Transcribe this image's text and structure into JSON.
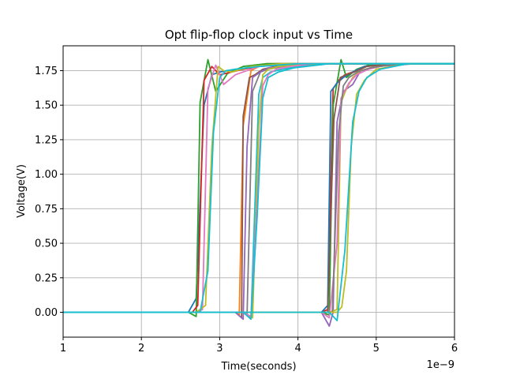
{
  "chart_data": {
    "type": "line",
    "title": "Opt flip-flop clock input vs Time",
    "xlabel": "Time(seconds)",
    "ylabel": "Voltage(V)",
    "x_offset_label": "1e−9",
    "x_scale": 1e-09,
    "xlim": [
      1,
      6
    ],
    "ylim": [
      -0.18,
      1.93
    ],
    "x_ticks": [
      1,
      2,
      3,
      4,
      5,
      6
    ],
    "x_tick_labels": [
      "1",
      "2",
      "3",
      "4",
      "5",
      "6"
    ],
    "y_ticks": [
      0,
      0.25,
      0.5,
      0.75,
      1.0,
      1.25,
      1.5,
      1.75
    ],
    "y_tick_labels": [
      "0.00",
      "0.25",
      "0.50",
      "0.75",
      "1.00",
      "1.25",
      "1.50",
      "1.75"
    ],
    "grid": true,
    "series": [
      {
        "color": "#1f77b4",
        "x": [
          1.0,
          2.6,
          2.7,
          2.8,
          2.9,
          3.0,
          3.2,
          3.3,
          3.4,
          3.5,
          3.6,
          3.7,
          4.3,
          4.4,
          4.5,
          4.6,
          4.7,
          4.8,
          5.0,
          6.0
        ],
        "y": [
          0,
          0,
          0.1,
          1.5,
          1.72,
          1.74,
          1.76,
          1.76,
          1.78,
          1.78,
          1.79,
          1.8,
          1.8,
          1.8,
          1.8,
          1.8,
          1.8,
          1.8,
          1.8,
          1.8
        ]
      },
      {
        "color": "#ff7f0e",
        "x": [
          1.0,
          3.2,
          3.25,
          3.3,
          3.4,
          3.5,
          3.6,
          3.8,
          4.0,
          4.5,
          6.0
        ],
        "y": [
          0,
          0,
          -0.02,
          1.35,
          1.75,
          1.78,
          1.8,
          1.8,
          1.8,
          1.8,
          1.8
        ]
      },
      {
        "color": "#2ca02c",
        "x": [
          1.0,
          2.6,
          2.7,
          2.75,
          2.85,
          2.95,
          3.1,
          3.3,
          3.6,
          4.0,
          6.0
        ],
        "y": [
          0,
          0,
          -0.03,
          1.52,
          1.83,
          1.6,
          1.73,
          1.78,
          1.8,
          1.8,
          1.8
        ]
      },
      {
        "color": "#d62728",
        "x": [
          1.0,
          2.65,
          2.72,
          2.8,
          2.9,
          3.0,
          3.3,
          3.6,
          4.0,
          6.0
        ],
        "y": [
          0,
          0,
          0.05,
          1.68,
          1.78,
          1.72,
          1.76,
          1.79,
          1.8,
          1.8
        ]
      },
      {
        "color": "#9467bd",
        "x": [
          1.0,
          4.3,
          4.4,
          4.45,
          4.5,
          4.58,
          4.7,
          4.8,
          5.0,
          5.5,
          6.0
        ],
        "y": [
          0,
          0,
          -0.1,
          0.0,
          1.38,
          1.6,
          1.65,
          1.75,
          1.78,
          1.8,
          1.8
        ]
      },
      {
        "color": "#8c564b",
        "x": [
          1.0,
          3.2,
          3.28,
          3.3,
          3.38,
          3.45,
          3.55,
          3.7,
          3.9,
          4.2,
          6.0
        ],
        "y": [
          0,
          0,
          -0.04,
          1.42,
          1.7,
          1.72,
          1.76,
          1.78,
          1.8,
          1.8,
          1.8
        ]
      },
      {
        "color": "#e377c2",
        "x": [
          1.0,
          2.7,
          2.78,
          2.85,
          2.95,
          3.05,
          3.2,
          3.5,
          4.0,
          6.0
        ],
        "y": [
          0,
          0,
          0.02,
          1.62,
          1.79,
          1.65,
          1.72,
          1.78,
          1.8,
          1.8
        ]
      },
      {
        "color": "#7f7f7f",
        "x": [
          1.0,
          3.3,
          3.35,
          3.42,
          3.52,
          3.62,
          3.8,
          4.0,
          4.3,
          6.0
        ],
        "y": [
          0,
          0,
          -0.02,
          1.6,
          1.74,
          1.76,
          1.78,
          1.79,
          1.8,
          1.8
        ]
      },
      {
        "color": "#bcbd22",
        "x": [
          1.0,
          4.4,
          4.5,
          4.55,
          4.62,
          4.7,
          4.8,
          5.0,
          5.3,
          6.0
        ],
        "y": [
          0,
          0,
          0.02,
          1.52,
          1.62,
          1.7,
          1.75,
          1.78,
          1.8,
          1.8
        ]
      },
      {
        "color": "#17becf",
        "x": [
          1.0,
          3.3,
          3.4,
          3.5,
          3.55,
          3.65,
          3.8,
          4.0,
          4.3,
          6.0
        ],
        "y": [
          0,
          0,
          -0.04,
          1.58,
          1.7,
          1.74,
          1.76,
          1.78,
          1.8,
          1.8
        ]
      },
      {
        "color": "#d62728",
        "x": [
          1.0,
          4.3,
          4.38,
          4.45,
          4.52,
          4.6,
          4.7,
          4.85,
          5.1,
          6.0
        ],
        "y": [
          0,
          0,
          0.02,
          1.62,
          1.68,
          1.72,
          1.74,
          1.78,
          1.8,
          1.8
        ]
      },
      {
        "color": "#2ca02c",
        "x": [
          1.0,
          4.3,
          4.4,
          4.45,
          4.55,
          4.62,
          4.75,
          4.9,
          5.2,
          6.0
        ],
        "y": [
          0,
          0,
          -0.02,
          1.5,
          1.83,
          1.7,
          1.76,
          1.79,
          1.8,
          1.8
        ]
      },
      {
        "color": "#1f77b4",
        "x": [
          1.0,
          4.3,
          4.38,
          4.42,
          4.5,
          4.58,
          4.7,
          4.85,
          5.2,
          6.0
        ],
        "y": [
          0,
          0,
          0.05,
          1.6,
          1.66,
          1.7,
          1.74,
          1.78,
          1.8,
          1.8
        ]
      },
      {
        "color": "#e377c2",
        "x": [
          1.0,
          4.3,
          4.4,
          4.5,
          4.55,
          4.65,
          4.75,
          4.9,
          5.2,
          6.0
        ],
        "y": [
          0,
          0,
          -0.04,
          0.5,
          1.55,
          1.66,
          1.72,
          1.76,
          1.8,
          1.8
        ]
      },
      {
        "color": "#8c564b",
        "x": [
          1.0,
          4.3,
          4.38,
          4.46,
          4.54,
          4.62,
          4.72,
          4.88,
          5.2,
          6.0
        ],
        "y": [
          0,
          0,
          0.0,
          1.4,
          1.7,
          1.72,
          1.74,
          1.78,
          1.8,
          1.8
        ]
      },
      {
        "color": "#9467bd",
        "x": [
          1.0,
          3.2,
          3.3,
          3.35,
          3.42,
          3.52,
          3.62,
          3.8,
          4.1,
          6.0
        ],
        "y": [
          0,
          0,
          -0.05,
          1.2,
          1.7,
          1.74,
          1.77,
          1.78,
          1.8,
          1.8
        ]
      },
      {
        "color": "#bcbd22",
        "x": [
          1.0,
          3.3,
          3.42,
          3.5,
          3.55,
          3.62,
          3.75,
          3.95,
          4.3,
          6.0
        ],
        "y": [
          0,
          0,
          -0.04,
          1.35,
          1.72,
          1.76,
          1.78,
          1.79,
          1.8,
          1.8
        ]
      },
      {
        "color": "#7f7f7f",
        "x": [
          1.0,
          4.3,
          4.44,
          4.52,
          4.58,
          4.65,
          4.76,
          4.92,
          5.3,
          6.0
        ],
        "y": [
          0,
          0,
          0.0,
          1.3,
          1.64,
          1.7,
          1.74,
          1.77,
          1.8,
          1.8
        ]
      },
      {
        "color": "#bcbd22",
        "x": [
          1.0,
          2.7,
          2.82,
          2.9,
          2.98,
          3.05,
          3.15,
          3.4,
          3.8,
          6.0
        ],
        "y": [
          0,
          0,
          0.05,
          1.2,
          1.78,
          1.75,
          1.74,
          1.78,
          1.8,
          1.8
        ]
      },
      {
        "color": "#e377c2",
        "x": [
          1.0,
          3.3,
          3.4,
          3.48,
          3.55,
          3.62,
          3.72,
          3.9,
          4.2,
          6.0
        ],
        "y": [
          0,
          0,
          -0.03,
          0.8,
          1.64,
          1.72,
          1.76,
          1.78,
          1.8,
          1.8
        ]
      },
      {
        "color": "#bcbd22",
        "x": [
          1.0,
          4.5,
          4.56,
          4.62,
          4.68,
          4.75,
          4.85,
          5.0,
          5.4,
          6.0
        ],
        "y": [
          0,
          0,
          0.04,
          0.3,
          1.2,
          1.58,
          1.68,
          1.76,
          1.8,
          1.8
        ]
      },
      {
        "color": "#17becf",
        "x": [
          1.0,
          2.75,
          2.85,
          2.92,
          3.0,
          3.08,
          3.2,
          3.5,
          4.0,
          6.0
        ],
        "y": [
          0,
          0,
          0.3,
          1.3,
          1.7,
          1.75,
          1.76,
          1.78,
          1.8,
          1.8
        ]
      },
      {
        "color": "#17becf",
        "x": [
          1.0,
          3.3,
          3.4,
          3.48,
          3.55,
          3.62,
          3.75,
          3.95,
          4.4,
          6.0
        ],
        "y": [
          0,
          0,
          -0.05,
          0.7,
          1.55,
          1.7,
          1.74,
          1.77,
          1.8,
          1.8
        ]
      },
      {
        "color": "#17becf",
        "x": [
          1.0,
          4.4,
          4.5,
          4.6,
          4.7,
          4.78,
          4.88,
          5.05,
          5.4,
          6.0
        ],
        "y": [
          0,
          0,
          -0.06,
          0.45,
          1.38,
          1.6,
          1.7,
          1.76,
          1.8,
          1.8
        ]
      }
    ]
  }
}
